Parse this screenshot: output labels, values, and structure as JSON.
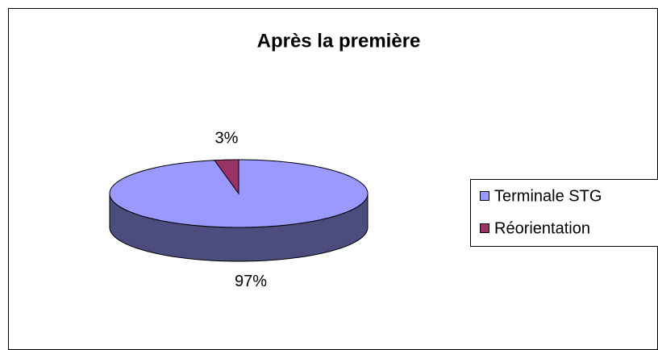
{
  "chart_data": {
    "type": "pie",
    "title": "Après la première",
    "categories": [
      "Terminale STG",
      "Réorientation"
    ],
    "values": [
      97,
      3
    ],
    "value_labels": [
      "97%",
      "3%"
    ],
    "colors": [
      "#9999ff",
      "#993366"
    ],
    "legend": "right"
  }
}
